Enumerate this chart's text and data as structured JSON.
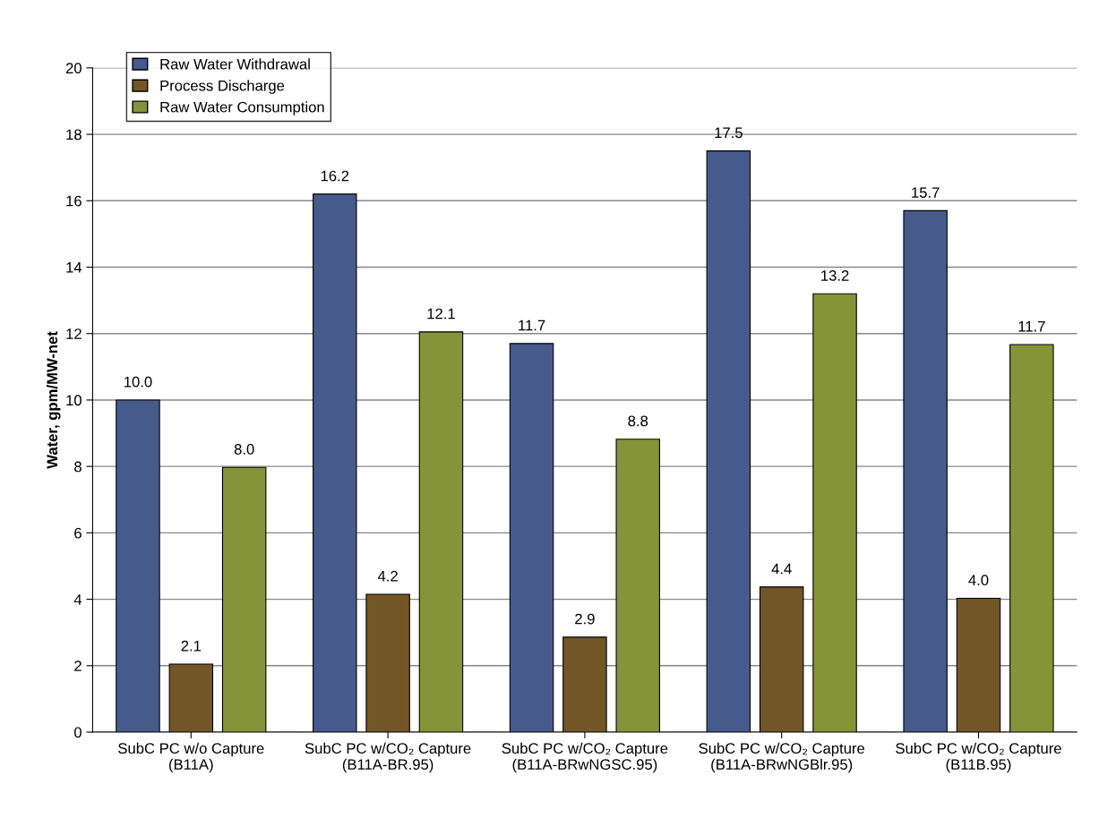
{
  "chart_data": {
    "type": "bar",
    "ylabel": "Water, gpm/MW-net",
    "categories": [
      "SubC PC w/o Capture\n(B11A)",
      "SubC PC w/CO₂ Capture\n(B11A-BR.95)",
      "SubC PC w/CO₂ Capture\n(B11A-BRwNGSC.95)",
      "SubC PC w/CO₂ Capture\n(B11A-BRwNGBlr.95)",
      "SubC PC w/CO₂ Capture\n(B11B.95)"
    ],
    "series": [
      {
        "name": "Raw Water Withdrawal",
        "color": "#475a8c",
        "values": [
          10.0,
          16.2,
          11.7,
          17.5,
          15.7
        ],
        "value_labels": [
          "10.0",
          "16.2",
          "11.7",
          "17.5",
          "15.7"
        ]
      },
      {
        "name": "Process Discharge",
        "color": "#735628",
        "values": [
          2.05,
          4.15,
          2.86,
          4.37,
          4.03
        ],
        "value_labels": [
          "2.1",
          "4.2",
          "2.9",
          "4.4",
          "4.0"
        ]
      },
      {
        "name": "Raw Water Consumption",
        "color": "#859439",
        "values": [
          7.97,
          12.05,
          8.82,
          13.2,
          11.67
        ],
        "value_labels": [
          "8.0",
          "12.1",
          "8.8",
          "13.2",
          "11.7"
        ]
      }
    ],
    "ylim": [
      0,
      20
    ],
    "yticks": [
      0,
      2,
      4,
      6,
      8,
      10,
      12,
      14,
      16,
      18,
      20
    ],
    "grid": "y",
    "legend": "top left"
  }
}
